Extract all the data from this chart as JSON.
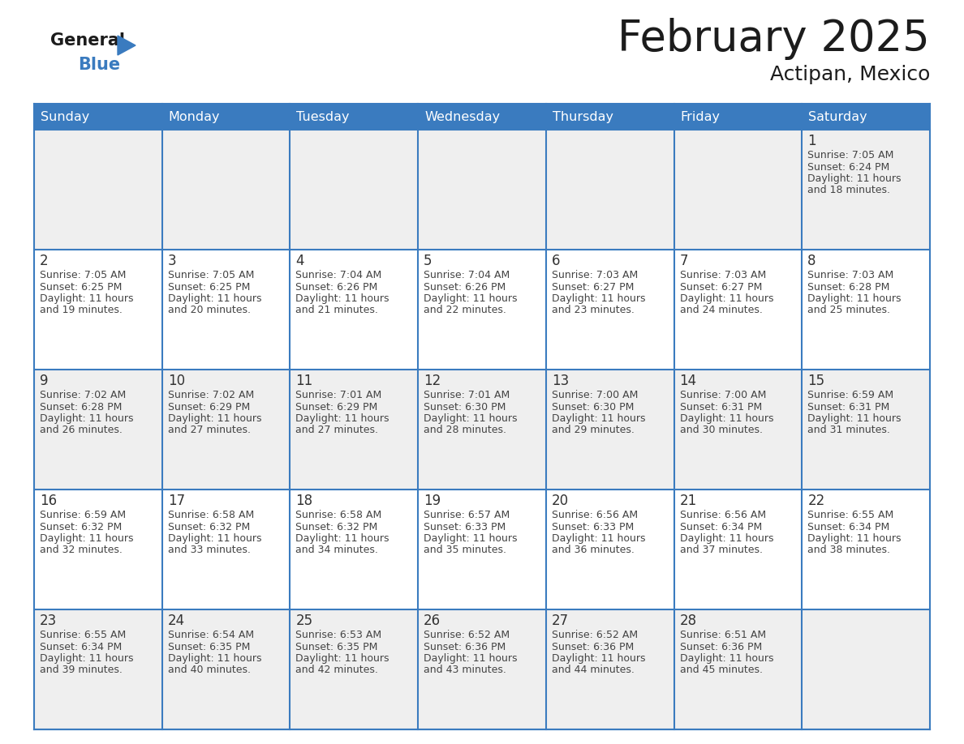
{
  "title": "February 2025",
  "subtitle": "Actipan, Mexico",
  "header_bg_color": "#3A7BBF",
  "header_text_color": "#FFFFFF",
  "day_names": [
    "Sunday",
    "Monday",
    "Tuesday",
    "Wednesday",
    "Thursday",
    "Friday",
    "Saturday"
  ],
  "bg_color": "#FFFFFF",
  "row_bg_colors": [
    "#EFEFEF",
    "#FFFFFF",
    "#EFEFEF",
    "#FFFFFF",
    "#EFEFEF"
  ],
  "grid_line_color": "#3A7BBF",
  "day_number_color": "#333333",
  "info_text_color": "#444444",
  "calendar_data": [
    [
      null,
      null,
      null,
      null,
      null,
      null,
      1
    ],
    [
      2,
      3,
      4,
      5,
      6,
      7,
      8
    ],
    [
      9,
      10,
      11,
      12,
      13,
      14,
      15
    ],
    [
      16,
      17,
      18,
      19,
      20,
      21,
      22
    ],
    [
      23,
      24,
      25,
      26,
      27,
      28,
      null
    ]
  ],
  "sunrise_data": {
    "1": "7:05 AM",
    "2": "7:05 AM",
    "3": "7:05 AM",
    "4": "7:04 AM",
    "5": "7:04 AM",
    "6": "7:03 AM",
    "7": "7:03 AM",
    "8": "7:03 AM",
    "9": "7:02 AM",
    "10": "7:02 AM",
    "11": "7:01 AM",
    "12": "7:01 AM",
    "13": "7:00 AM",
    "14": "7:00 AM",
    "15": "6:59 AM",
    "16": "6:59 AM",
    "17": "6:58 AM",
    "18": "6:58 AM",
    "19": "6:57 AM",
    "20": "6:56 AM",
    "21": "6:56 AM",
    "22": "6:55 AM",
    "23": "6:55 AM",
    "24": "6:54 AM",
    "25": "6:53 AM",
    "26": "6:52 AM",
    "27": "6:52 AM",
    "28": "6:51 AM"
  },
  "sunset_data": {
    "1": "6:24 PM",
    "2": "6:25 PM",
    "3": "6:25 PM",
    "4": "6:26 PM",
    "5": "6:26 PM",
    "6": "6:27 PM",
    "7": "6:27 PM",
    "8": "6:28 PM",
    "9": "6:28 PM",
    "10": "6:29 PM",
    "11": "6:29 PM",
    "12": "6:30 PM",
    "13": "6:30 PM",
    "14": "6:31 PM",
    "15": "6:31 PM",
    "16": "6:32 PM",
    "17": "6:32 PM",
    "18": "6:32 PM",
    "19": "6:33 PM",
    "20": "6:33 PM",
    "21": "6:34 PM",
    "22": "6:34 PM",
    "23": "6:34 PM",
    "24": "6:35 PM",
    "25": "6:35 PM",
    "26": "6:36 PM",
    "27": "6:36 PM",
    "28": "6:36 PM"
  },
  "daylight_data": {
    "1": "11 hours\nand 18 minutes.",
    "2": "11 hours\nand 19 minutes.",
    "3": "11 hours\nand 20 minutes.",
    "4": "11 hours\nand 21 minutes.",
    "5": "11 hours\nand 22 minutes.",
    "6": "11 hours\nand 23 minutes.",
    "7": "11 hours\nand 24 minutes.",
    "8": "11 hours\nand 25 minutes.",
    "9": "11 hours\nand 26 minutes.",
    "10": "11 hours\nand 27 minutes.",
    "11": "11 hours\nand 27 minutes.",
    "12": "11 hours\nand 28 minutes.",
    "13": "11 hours\nand 29 minutes.",
    "14": "11 hours\nand 30 minutes.",
    "15": "11 hours\nand 31 minutes.",
    "16": "11 hours\nand 32 minutes.",
    "17": "11 hours\nand 33 minutes.",
    "18": "11 hours\nand 34 minutes.",
    "19": "11 hours\nand 35 minutes.",
    "20": "11 hours\nand 36 minutes.",
    "21": "11 hours\nand 37 minutes.",
    "22": "11 hours\nand 38 minutes.",
    "23": "11 hours\nand 39 minutes.",
    "24": "11 hours\nand 40 minutes.",
    "25": "11 hours\nand 42 minutes.",
    "26": "11 hours\nand 43 minutes.",
    "27": "11 hours\nand 44 minutes.",
    "28": "11 hours\nand 45 minutes."
  },
  "figsize": [
    11.88,
    9.18
  ],
  "dpi": 100
}
